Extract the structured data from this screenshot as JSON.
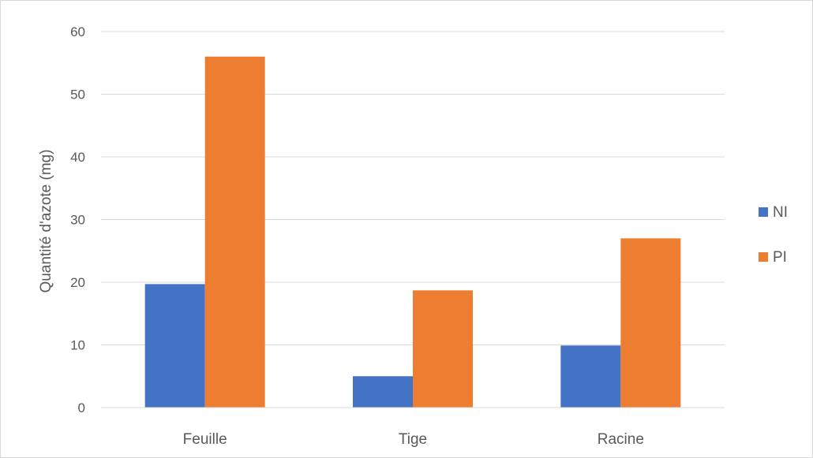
{
  "chart_data": {
    "type": "bar",
    "title": "",
    "xlabel": "",
    "ylabel": "Quantité d'azote (mg)",
    "categories": [
      "Feuille",
      "Tige",
      "Racine"
    ],
    "series": [
      {
        "name": "NI",
        "color": "#4472C4",
        "values": [
          19.7,
          5.0,
          9.9
        ]
      },
      {
        "name": "PI",
        "color": "#ED7D31",
        "values": [
          56.0,
          18.7,
          27.0
        ]
      }
    ],
    "ylim": [
      0,
      60
    ],
    "yticks": [
      0,
      10,
      20,
      30,
      40,
      50,
      60
    ],
    "grid": true,
    "legend_position": "right"
  }
}
